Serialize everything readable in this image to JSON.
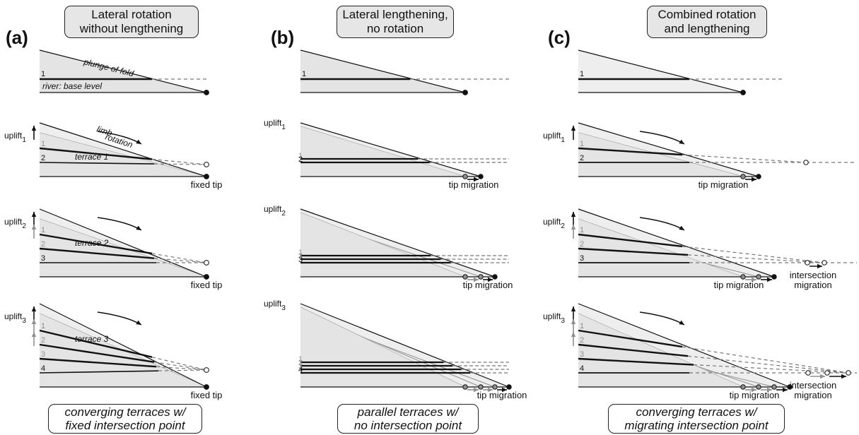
{
  "panels": [
    {
      "label": "(a)",
      "title_lines": [
        "Lateral rotation",
        "without lengthening"
      ],
      "caption_lines": [
        "converging terraces w/",
        "fixed intersection point"
      ],
      "annotations": {
        "plunge": "plunge of fold",
        "river": "river: base level",
        "limb": [
          "limb",
          "rotation"
        ],
        "terraces": [
          "terrace 1",
          "terrace 2",
          "terrace 3"
        ],
        "tip": "fixed tip"
      }
    },
    {
      "label": "(b)",
      "title_lines": [
        "Lateral lengthening,",
        "no rotation"
      ],
      "caption_lines": [
        "parallel terraces w/",
        "no intersection point"
      ],
      "annotations": {
        "tip": "tip migration"
      }
    },
    {
      "label": "(c)",
      "title_lines": [
        "Combined rotation",
        "and lengthening"
      ],
      "caption_lines": [
        "converging terraces w/",
        "migrating intersection point"
      ],
      "annotations": {
        "tip": "tip migration",
        "intersection": [
          "intersection",
          "migration"
        ]
      }
    }
  ],
  "uplift_label": "uplift",
  "uplift_subscripts": [
    "1",
    "2",
    "3"
  ],
  "level_numbers": [
    "1",
    "2",
    "3",
    "4"
  ],
  "colors": {
    "fill_current": "#e4e4e4",
    "fill_light": "#eeeeee",
    "old": "#909090",
    "line": "#111111",
    "dash": "#777777"
  }
}
